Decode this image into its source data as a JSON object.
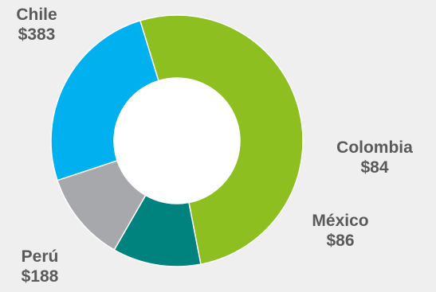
{
  "chart_data": {
    "type": "pie",
    "donut": true,
    "title": "",
    "slices": [
      {
        "label": "Chile",
        "value_label": "$383",
        "value": 383,
        "color": "#8cbf1f"
      },
      {
        "label": "Colombia",
        "value_label": "$84",
        "value": 84,
        "color": "#00837f"
      },
      {
        "label": "México",
        "value_label": "$86",
        "value": 86,
        "color": "#a6a8ab"
      },
      {
        "label": "Perú",
        "value_label": "$188",
        "value": 188,
        "color": "#00b0ef"
      }
    ],
    "start_angle_deg": -107,
    "direction": "clockwise",
    "legend": "none"
  }
}
